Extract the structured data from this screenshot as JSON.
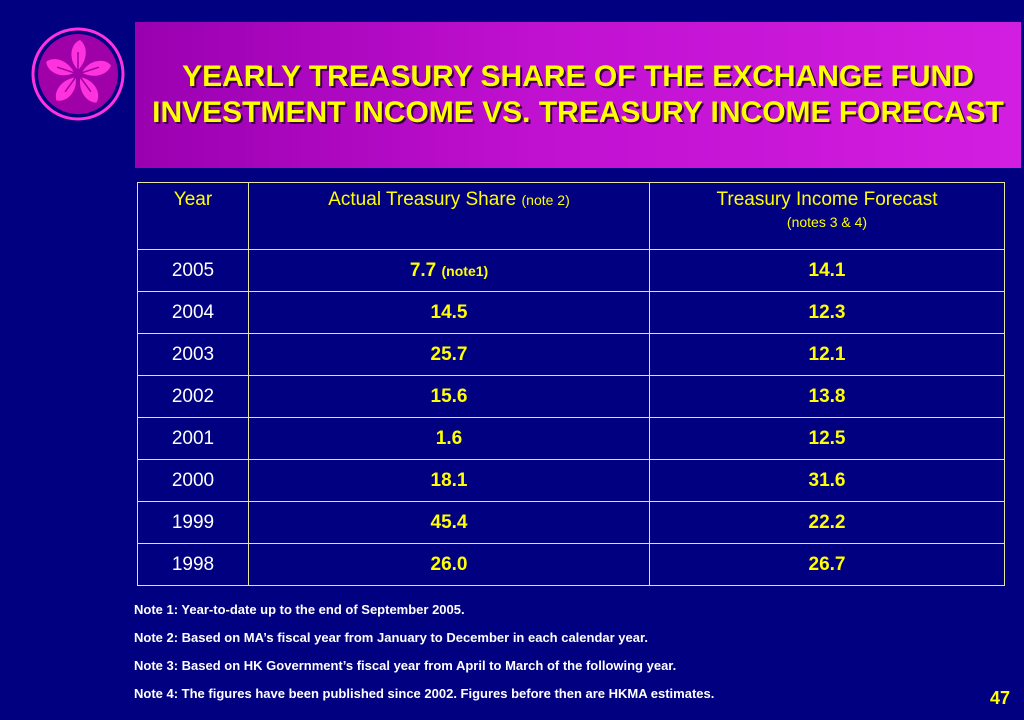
{
  "title": "YEARLY TREASURY SHARE OF THE EXCHANGE FUND INVESTMENT INCOME VS. TREASURY INCOME FORECAST",
  "colors": {
    "background": "#000080",
    "title_band": "#c010d0",
    "text_yellow": "#ffff00",
    "logo": "#ff33dd"
  },
  "table": {
    "headers": {
      "year": "Year",
      "actual": "Actual Treasury Share",
      "actual_note": "(note 2)",
      "forecast": "Treasury Income Forecast",
      "forecast_note": "(notes 3 & 4)"
    },
    "rows": [
      {
        "year": "2005",
        "actual": "7.7",
        "actual_note": "(note1)",
        "forecast": "14.1"
      },
      {
        "year": "2004",
        "actual": "14.5",
        "forecast": "12.3"
      },
      {
        "year": "2003",
        "actual": "25.7",
        "forecast": "12.1"
      },
      {
        "year": "2002",
        "actual": "15.6",
        "forecast": "13.8"
      },
      {
        "year": "2001",
        "actual": "1.6",
        "forecast": "12.5"
      },
      {
        "year": "2000",
        "actual": "18.1",
        "forecast": "31.6"
      },
      {
        "year": "1999",
        "actual": "45.4",
        "forecast": "22.2"
      },
      {
        "year": "1998",
        "actual": "26.0",
        "forecast": "26.7"
      }
    ]
  },
  "notes": [
    "Note 1: Year-to-date up to the end of September 2005.",
    "Note 2:  Based on MA’s fiscal year from January to December in each calendar year.",
    "Note 3:  Based on HK Government’s fiscal year from April to March of the following year.",
    "Note 4:  The figures have been published since 2002.  Figures before then are HKMA estimates."
  ],
  "page_number": "47",
  "icons": {
    "logo": "bauhinia-flower-icon"
  }
}
